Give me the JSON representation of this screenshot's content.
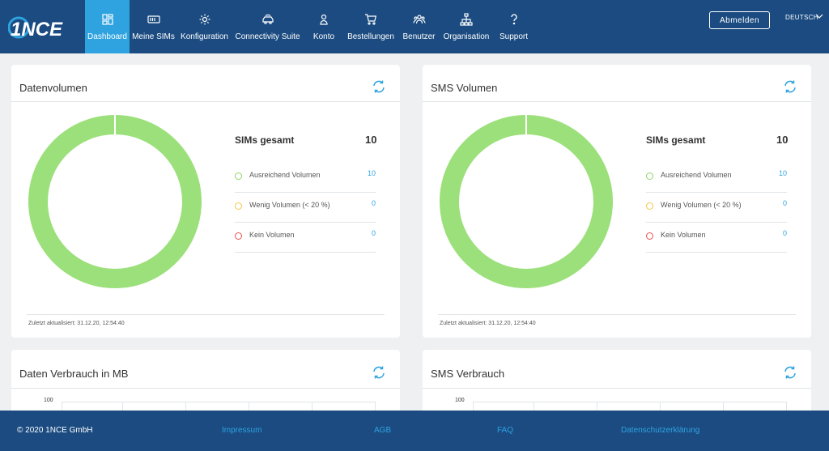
{
  "header": {
    "logo_text": "1NCE",
    "nav": [
      {
        "label": "Dashboard",
        "icon": "dashboard-icon",
        "active": true
      },
      {
        "label": "Meine SIMs",
        "icon": "sim-card-icon",
        "active": false
      },
      {
        "label": "Konfiguration",
        "icon": "gear-icon",
        "active": false
      },
      {
        "label": "Connectivity Suite",
        "icon": "car-icon",
        "active": false
      },
      {
        "label": "Konto",
        "icon": "user-icon",
        "active": false
      },
      {
        "label": "Bestellungen",
        "icon": "cart-icon",
        "active": false
      },
      {
        "label": "Benutzer",
        "icon": "users-icon",
        "active": false
      },
      {
        "label": "Organisation",
        "icon": "org-chart-icon",
        "active": false
      },
      {
        "label": "Support",
        "icon": "question-icon",
        "active": false
      }
    ],
    "logout_label": "Abmelden",
    "language": "DEUTSCH"
  },
  "data_volume_card": {
    "title": "Datenvolumen",
    "sims_label": "SIMs gesamt",
    "sims_total": "10",
    "legend": [
      {
        "label": "Ausreichend Volumen",
        "value": "10",
        "color": "#8ed567"
      },
      {
        "label": "Wenig Volumen (< 20 %)",
        "value": "0",
        "color": "#f2c744"
      },
      {
        "label": "Kein Volumen",
        "value": "0",
        "color": "#e84e4e"
      }
    ],
    "updated": "Zuletzt aktualisiert: 31.12.20, 12:54:40"
  },
  "sms_volume_card": {
    "title": "SMS Volumen",
    "sims_label": "SIMs gesamt",
    "sims_total": "10",
    "legend": [
      {
        "label": "Ausreichend Volumen",
        "value": "10",
        "color": "#8ed567"
      },
      {
        "label": "Wenig Volumen (< 20 %)",
        "value": "0",
        "color": "#f2c744"
      },
      {
        "label": "Kein Volumen",
        "value": "0",
        "color": "#e84e4e"
      }
    ],
    "updated": "Zuletzt aktualisiert: 31.12.20, 12:54:40"
  },
  "data_usage_card": {
    "title": "Daten Verbrauch in MB",
    "y_tick": "100"
  },
  "sms_usage_card": {
    "title": "SMS Verbrauch",
    "y_tick": "100"
  },
  "colors": {
    "header": "#1b4b80",
    "accent": "#2ea3e0",
    "donut": "#9be07a"
  },
  "footer": {
    "copyright": "© 2020 1NCE GmbH",
    "links": [
      "Impressum",
      "AGB",
      "FAQ",
      "Datenschutzerklärung"
    ]
  }
}
